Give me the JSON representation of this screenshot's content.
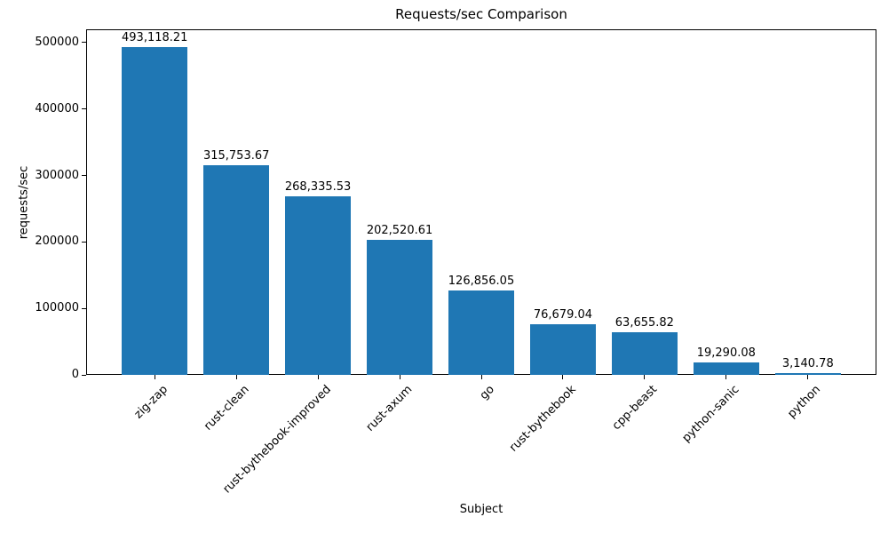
{
  "chart_data": {
    "type": "bar",
    "title": "Requests/sec Comparison",
    "xlabel": "Subject",
    "ylabel": "requests/sec",
    "categories": [
      "zig-zap",
      "rust-clean",
      "rust-bythebook-improved",
      "rust-axum",
      "go",
      "rust-bythebook",
      "cpp-beast",
      "python-sanic",
      "python"
    ],
    "values": [
      493118.21,
      315753.67,
      268335.53,
      202520.61,
      126856.05,
      76679.04,
      63655.82,
      19290.08,
      3140.78
    ],
    "bar_labels": [
      "493,118.21",
      "315,753.67",
      "268,335.53",
      "202,520.61",
      "126,856.05",
      "76,679.04",
      "63,655.82",
      "19,290.08",
      "3,140.78"
    ],
    "yticks": [
      0,
      100000,
      200000,
      300000,
      400000,
      500000
    ],
    "ytick_labels": [
      "0",
      "100000",
      "200000",
      "300000",
      "400000",
      "500000"
    ],
    "ylim": [
      0,
      520000
    ],
    "grid": false,
    "legend": null,
    "bar_color": "#1f77b4",
    "text_color": "#000000",
    "background_color": "#ffffff",
    "xtick_rotation_deg": 45
  }
}
